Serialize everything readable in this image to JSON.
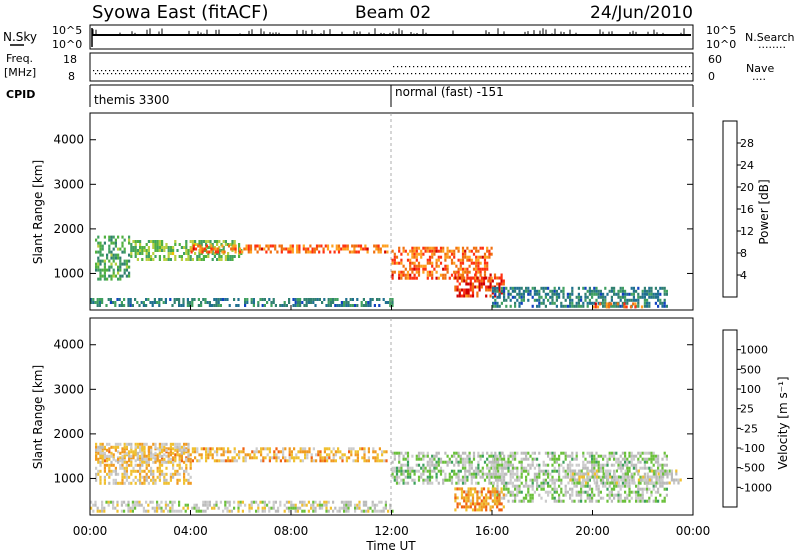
{
  "header": {
    "left_title": "Syowa East (fitACF)",
    "center_title": "Beam 02",
    "date": "24/Jun/2010"
  },
  "strips": {
    "nsky_label": "N.Sky",
    "nsky_ticks": [
      "10^5",
      "10^0"
    ],
    "nsky_right_ticks": [
      "10^5",
      "10^0"
    ],
    "nsearch_label": "N.Search",
    "nsearch_dots": "........",
    "freq_label": "Freq.",
    "freq_unit": "[MHz]",
    "freq_ticks": [
      "18",
      "8"
    ],
    "nave_ticks": [
      "60",
      "0"
    ],
    "nave_label": "Nave",
    "nave_dots": "....",
    "cpid_label": "CPID",
    "program_1": "themis 3300",
    "program_2": "normal (fast) -151"
  },
  "x_axis": {
    "ticks": [
      "00:00",
      "04:00",
      "08:00",
      "12:00",
      "16:00",
      "20:00",
      "00:00"
    ],
    "label": "Time UT"
  },
  "panels": {
    "power": {
      "ylabel": "Slant Range [km]",
      "yticks": [
        "4000",
        "3000",
        "2000",
        "1000"
      ]
    },
    "velocity": {
      "ylabel": "Slant Range [km]",
      "yticks": [
        "4000",
        "3000",
        "2000",
        "1000"
      ]
    }
  },
  "colorbars": {
    "power": {
      "label": "Power [dB]",
      "ticks": [
        "28",
        "24",
        "20",
        "16",
        "12",
        "8",
        "4"
      ],
      "colors": [
        "#d00000",
        "#ff3010",
        "#f07010",
        "#ffa020",
        "#f0c000",
        "#b8d040",
        "#50b040",
        "#40a060",
        "#308070",
        "#207090",
        "#1040c0",
        "#0000ff"
      ]
    },
    "velocity": {
      "label": "Velocity [m s⁻¹]",
      "ticks": [
        "1000",
        "500",
        "100",
        "25",
        "-25",
        "-100",
        "-500",
        "-1000"
      ],
      "colors": [
        "#1a3aa8",
        "#2070a0",
        "#2a8a70",
        "#3aa05a",
        "#6ac03a",
        "#bbbbbb",
        "#cccccc",
        "#f0c030",
        "#f09a20",
        "#f06010",
        "#e02010",
        "#cc0000"
      ]
    }
  },
  "chart_data": [
    {
      "type": "heatmap",
      "title": "Power",
      "xlabel": "Time UT",
      "ylabel": "Slant Range [km]",
      "xlim": [
        "00:00",
        "24:00"
      ],
      "ylim": [
        180,
        4600
      ],
      "colorbar": {
        "label": "Power [dB]",
        "range": [
          0,
          30
        ]
      },
      "echo_regions": [
        {
          "t_start": 0.2,
          "t_end": 1.6,
          "range_start": 900,
          "range_end": 1850,
          "value": 12
        },
        {
          "t_start": 1.6,
          "t_end": 6.0,
          "range_start": 1300,
          "range_end": 1750,
          "value": 14
        },
        {
          "t_start": 4.0,
          "t_end": 11.8,
          "range_start": 1450,
          "range_end": 1650,
          "value": 24
        },
        {
          "t_start": 12.0,
          "t_end": 16.0,
          "range_start": 900,
          "range_end": 1600,
          "value": 24
        },
        {
          "t_start": 14.5,
          "t_end": 16.5,
          "range_start": 500,
          "range_end": 1000,
          "value": 26
        },
        {
          "t_start": 0.0,
          "t_end": 12.0,
          "range_start": 280,
          "range_end": 450,
          "value": 8
        },
        {
          "t_start": 16.0,
          "t_end": 23.0,
          "range_start": 280,
          "range_end": 700,
          "value": 8
        },
        {
          "t_start": 20.0,
          "t_end": 22.0,
          "range_start": 250,
          "range_end": 350,
          "value": 24
        }
      ]
    },
    {
      "type": "heatmap",
      "title": "Velocity",
      "xlabel": "Time UT",
      "ylabel": "Slant Range [km]",
      "xlim": [
        "00:00",
        "24:00"
      ],
      "ylim": [
        180,
        4600
      ],
      "colorbar": {
        "label": "Velocity [m s⁻¹]",
        "range": [
          -1000,
          1000
        ]
      },
      "echo_regions": [
        {
          "t_start": 0.2,
          "t_end": 11.8,
          "range_start": 1400,
          "range_end": 1700,
          "value": -300
        },
        {
          "t_start": 0.2,
          "t_end": 4.0,
          "range_start": 900,
          "range_end": 1800,
          "value": -200
        },
        {
          "t_start": 12.0,
          "t_end": 16.5,
          "range_start": 900,
          "range_end": 1600,
          "value": 150
        },
        {
          "t_start": 16.0,
          "t_end": 23.0,
          "range_start": 500,
          "range_end": 1600,
          "value": 120
        },
        {
          "t_start": 0.0,
          "t_end": 12.0,
          "range_start": 280,
          "range_end": 500,
          "value": 0
        },
        {
          "t_start": 14.5,
          "t_end": 16.5,
          "range_start": 300,
          "range_end": 800,
          "value": -400
        },
        {
          "t_start": 19.0,
          "t_end": 23.5,
          "range_start": 900,
          "range_end": 1200,
          "value": 0
        }
      ]
    }
  ]
}
